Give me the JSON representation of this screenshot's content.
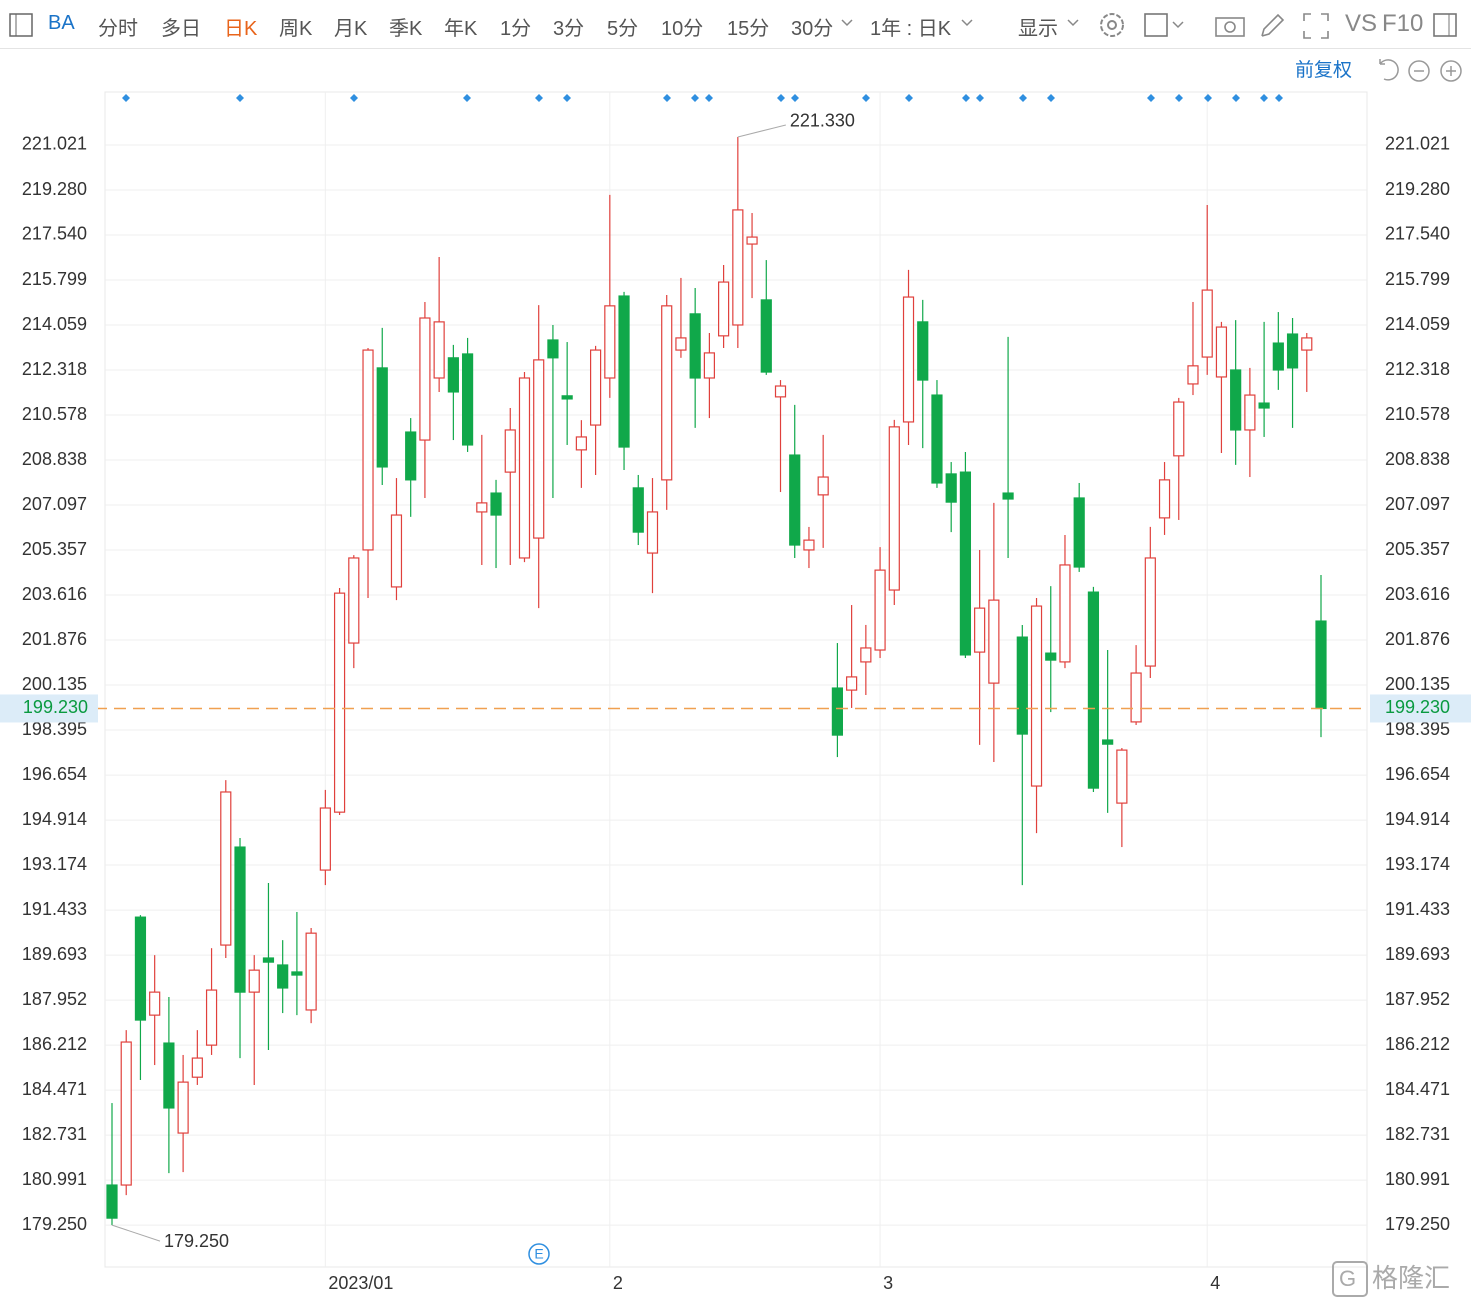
{
  "toolbar": {
    "symbol": "BA",
    "periods": [
      "分时",
      "多日",
      "日K",
      "周K",
      "月K",
      "季K",
      "年K",
      "1分",
      "3分",
      "5分",
      "10分",
      "15分",
      "30分"
    ],
    "range": "1年 : 日K",
    "display": "显示",
    "vs": "VS",
    "f10": "F10",
    "adjust": "前复权"
  },
  "watermark": "格隆汇",
  "chart_data": {
    "type": "candlestick",
    "categories": [
      null,
      null,
      null,
      null,
      null,
      null,
      null,
      null,
      null,
      null,
      null,
      null,
      null,
      null,
      null,
      "2023/01",
      null,
      null,
      null,
      null,
      null,
      null,
      null,
      null,
      null,
      null,
      null,
      null,
      null,
      null,
      null,
      null,
      null,
      null,
      null,
      "2",
      null,
      null,
      null,
      null,
      null,
      null,
      null,
      null,
      null,
      null,
      null,
      null,
      null,
      null,
      null,
      null,
      null,
      null,
      "3",
      null,
      null,
      null,
      null,
      null,
      null,
      null,
      null,
      null,
      null,
      null,
      null,
      null,
      null,
      null,
      null,
      null,
      null,
      null,
      null,
      null,
      null,
      "4",
      null,
      null,
      null,
      null,
      null,
      null,
      null,
      null
    ],
    "open": [
      180.8,
      180.8,
      191.16,
      187.37,
      186.29,
      182.81,
      184.97,
      186.21,
      190.08,
      193.87,
      188.26,
      189.58,
      189.31,
      189.04,
      187.57,
      192.98,
      195.22,
      201.76,
      205.36,
      212.4,
      203.93,
      209.92,
      209.61,
      212.01,
      212.79,
      212.94,
      206.83,
      207.56,
      208.37,
      205.05,
      205.82,
      213.48,
      211.32,
      209.23,
      210.19,
      212.01,
      215.18,
      207.76,
      205.24,
      208.07,
      213.09,
      214.49,
      212.01,
      213.64,
      214.06,
      217.19,
      215.03,
      211.28,
      209.03,
      205.36,
      207.49,
      200.02,
      199.94,
      201.03,
      201.49,
      203.81,
      210.31,
      214.18,
      211.35,
      208.3,
      208.37,
      201.41,
      200.21,
      207.56,
      201.99,
      196.23,
      201.37,
      201.03,
      207.37,
      203.73,
      198.01,
      195.57,
      198.71,
      200.87,
      206.6,
      209.0,
      211.78,
      212.82,
      212.05,
      212.32,
      210.0,
      211.04,
      213.36,
      213.71,
      213.09,
      202.61
    ],
    "high": [
      183.97,
      186.79,
      191.24,
      189.69,
      188.07,
      185.83,
      186.79,
      189.96,
      196.46,
      194.22,
      189.69,
      192.48,
      190.27,
      191.36,
      190.74,
      196.08,
      203.89,
      205.16,
      213.17,
      213.95,
      208.14,
      210.46,
      214.95,
      216.69,
      213.29,
      213.56,
      209.81,
      208.07,
      210.85,
      212.24,
      214.83,
      214.06,
      213.4,
      210.38,
      213.25,
      219.09,
      215.34,
      208.26,
      208.14,
      215.22,
      215.88,
      215.49,
      213.75,
      216.38,
      221.33,
      218.39,
      216.57,
      211.93,
      210.97,
      206.25,
      209.81,
      201.76,
      203.23,
      202.46,
      205.47,
      210.39,
      216.19,
      215.03,
      211.93,
      208.76,
      209.15,
      205.36,
      207.18,
      213.6,
      202.46,
      203.5,
      203.96,
      205.94,
      207.95,
      203.93,
      201.49,
      197.7,
      201.68,
      206.25,
      208.76,
      211.24,
      214.95,
      218.7,
      214.18,
      214.25,
      212.4,
      214.18,
      214.56,
      214.33,
      213.75,
      204.39
    ],
    "low": [
      179.25,
      180.41,
      184.86,
      185.44,
      181.26,
      181.3,
      184.67,
      185.83,
      189.58,
      185.71,
      184.67,
      186.02,
      187.45,
      187.37,
      187.06,
      192.4,
      195.11,
      200.79,
      203.5,
      207.87,
      203.42,
      206.64,
      207.37,
      211.47,
      209.61,
      209.15,
      204.78,
      204.66,
      204.78,
      204.89,
      203.11,
      207.37,
      209.42,
      207.76,
      208.26,
      211.24,
      208.45,
      205.55,
      203.69,
      206.91,
      212.79,
      210.08,
      210.46,
      213.17,
      213.17,
      215.1,
      212.13,
      207.6,
      205.05,
      204.66,
      205.44,
      197.35,
      199.25,
      199.75,
      201.18,
      203.23,
      209.42,
      209.3,
      207.76,
      206.05,
      201.18,
      197.82,
      197.16,
      205.05,
      192.4,
      194.41,
      199.09,
      200.79,
      204.51,
      196.0,
      195.19,
      193.87,
      198.59,
      200.41,
      205.94,
      206.52,
      211.35,
      212.13,
      209.11,
      208.65,
      208.18,
      209.73,
      211.55,
      210.08,
      211.47,
      198.12
    ],
    "close": [
      179.52,
      186.33,
      187.18,
      188.26,
      183.78,
      184.78,
      185.71,
      188.34,
      196.0,
      188.26,
      189.11,
      189.42,
      188.42,
      188.92,
      190.54,
      195.38,
      203.69,
      205.05,
      213.09,
      208.57,
      206.71,
      208.07,
      214.33,
      214.18,
      211.47,
      209.42,
      207.18,
      206.71,
      210.0,
      212.01,
      212.71,
      212.79,
      211.2,
      209.73,
      213.09,
      214.8,
      209.34,
      206.05,
      206.83,
      214.8,
      213.56,
      212.01,
      212.98,
      215.72,
      218.51,
      217.46,
      212.24,
      211.7,
      205.55,
      205.74,
      208.18,
      198.2,
      200.45,
      201.57,
      204.58,
      210.12,
      215.14,
      211.93,
      207.95,
      207.21,
      201.3,
      203.11,
      203.42,
      207.33,
      198.24,
      203.19,
      201.1,
      204.78,
      204.7,
      196.15,
      197.85,
      197.62,
      200.6,
      205.05,
      208.07,
      211.08,
      212.48,
      215.41,
      213.98,
      210.0,
      211.35,
      210.85,
      212.32,
      212.4,
      213.56,
      199.23
    ],
    "up_color": "#e0403c",
    "down_color": "#10a84a",
    "ylim": [
      177.63,
      223.07
    ],
    "yticks": [
      {
        "value": 179.25,
        "label": "179.250"
      },
      180.991,
      182.731,
      184.471,
      186.212,
      187.952,
      189.693,
      191.433,
      193.174,
      194.914,
      196.654,
      198.395,
      200.135,
      201.876,
      203.616,
      205.357,
      207.097,
      208.838,
      210.578,
      212.318,
      214.059,
      215.799,
      {
        "value": 217.54,
        "label": "217.540"
      },
      {
        "value": 219.28,
        "label": "219.280"
      },
      221.021
    ],
    "grid": true,
    "last_price": {
      "value": 199.23,
      "label": "199.230"
    },
    "max_label": {
      "value": 221.33,
      "label": "221.330"
    },
    "min_label": {
      "value": 179.25,
      "label": "179.250"
    },
    "event_label": "E"
  }
}
